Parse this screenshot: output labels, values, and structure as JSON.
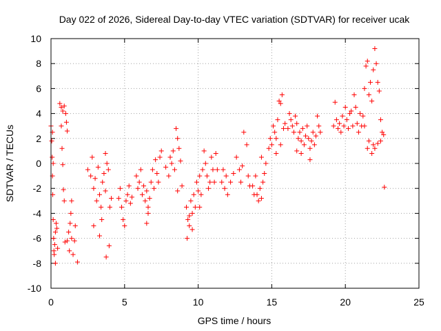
{
  "chart_data": {
    "type": "scatter",
    "title": "Day 022 of 2026, Sidereal Day-to-day VTEC variation (SDTVAR) for receiver ucak",
    "xlabel": "GPS time / hours",
    "ylabel": "SDTVAR / TECUs",
    "xlim": [
      0,
      25
    ],
    "ylim": [
      -10,
      10
    ],
    "x_ticks": [
      0,
      5,
      10,
      15,
      20,
      25
    ],
    "y_ticks": [
      -10,
      -8,
      -6,
      -4,
      -2,
      0,
      2,
      4,
      6,
      8,
      10
    ],
    "x_tick_labels": [
      "0",
      "5",
      "10",
      "15",
      "20",
      "25"
    ],
    "y_tick_labels": [
      "-10",
      "-8",
      "-6",
      "-4",
      "-2",
      "0",
      "2",
      "4",
      "6",
      "8",
      "10"
    ],
    "grid": true,
    "marker": "+",
    "color": "#ff0000",
    "series": [
      {
        "name": "SDTVAR",
        "points": [
          [
            0.0,
            3.0
          ],
          [
            0.05,
            1.8
          ],
          [
            0.08,
            0.5
          ],
          [
            0.1,
            -1.0
          ],
          [
            0.12,
            -2.5
          ],
          [
            0.15,
            -4.5
          ],
          [
            0.18,
            -6.0
          ],
          [
            0.2,
            -7.0
          ],
          [
            0.22,
            -7.3
          ],
          [
            0.25,
            -6.5
          ],
          [
            0.3,
            -5.5
          ],
          [
            0.35,
            -4.8
          ],
          [
            0.4,
            -5.2
          ],
          [
            0.45,
            -6.8
          ],
          [
            0.3,
            -8.0
          ],
          [
            0.1,
            2.5
          ],
          [
            0.15,
            0.0
          ],
          [
            0.6,
            4.8
          ],
          [
            0.7,
            4.5
          ],
          [
            0.8,
            4.2
          ],
          [
            0.9,
            4.6
          ],
          [
            1.0,
            4.0
          ],
          [
            1.05,
            3.3
          ],
          [
            1.1,
            2.6
          ],
          [
            0.7,
            3.0
          ],
          [
            0.75,
            1.2
          ],
          [
            0.8,
            -0.1
          ],
          [
            0.85,
            -2.1
          ],
          [
            0.9,
            -3.0
          ],
          [
            0.95,
            -6.3
          ],
          [
            1.1,
            -6.2
          ],
          [
            1.2,
            -5.5
          ],
          [
            1.3,
            -4.8
          ],
          [
            1.35,
            -4.0
          ],
          [
            1.4,
            -3.0
          ],
          [
            1.25,
            -7.0
          ],
          [
            1.4,
            -6.0
          ],
          [
            1.5,
            -7.3
          ],
          [
            1.6,
            -6.2
          ],
          [
            1.8,
            -7.9
          ],
          [
            1.65,
            -5.0
          ],
          [
            2.5,
            -0.5
          ],
          [
            2.7,
            -1.0
          ],
          [
            2.8,
            0.5
          ],
          [
            2.9,
            -2.0
          ],
          [
            3.0,
            -1.2
          ],
          [
            3.1,
            -3.0
          ],
          [
            3.2,
            -0.3
          ],
          [
            3.3,
            -2.5
          ],
          [
            3.4,
            -3.5
          ],
          [
            3.5,
            -1.5
          ],
          [
            3.6,
            -0.8
          ],
          [
            3.7,
            -2.2
          ],
          [
            3.8,
            0.0
          ],
          [
            3.9,
            -0.5
          ],
          [
            3.7,
            0.8
          ],
          [
            3.75,
            -7.5
          ],
          [
            3.3,
            -5.8
          ],
          [
            3.45,
            -4.5
          ],
          [
            2.9,
            -5.0
          ],
          [
            4.0,
            -3.5
          ],
          [
            4.1,
            -2.8
          ],
          [
            3.95,
            -6.6
          ],
          [
            4.6,
            -2.8
          ],
          [
            4.7,
            -2.0
          ],
          [
            4.8,
            -3.5
          ],
          [
            4.9,
            -4.5
          ],
          [
            5.0,
            -5.0
          ],
          [
            5.1,
            -3.0
          ],
          [
            5.2,
            -2.5
          ],
          [
            5.3,
            -1.8
          ],
          [
            5.4,
            -3.2
          ],
          [
            5.5,
            -2.7
          ],
          [
            5.8,
            -1.0
          ],
          [
            5.9,
            -2.0
          ],
          [
            6.0,
            -1.5
          ],
          [
            6.1,
            -0.5
          ],
          [
            6.2,
            -2.5
          ],
          [
            6.3,
            -1.8
          ],
          [
            6.4,
            -3.0
          ],
          [
            6.5,
            -2.2
          ],
          [
            6.6,
            -4.0
          ],
          [
            6.7,
            -2.8
          ],
          [
            6.8,
            -1.5
          ],
          [
            6.9,
            -0.5
          ],
          [
            7.0,
            -2.0
          ],
          [
            7.1,
            0.3
          ],
          [
            7.2,
            -0.8
          ],
          [
            7.3,
            -1.5
          ],
          [
            7.4,
            0.5
          ],
          [
            7.5,
            1.0
          ],
          [
            6.5,
            -4.8
          ],
          [
            6.6,
            -3.5
          ],
          [
            7.8,
            -0.3
          ],
          [
            8.0,
            -1.0
          ],
          [
            8.1,
            0.5
          ],
          [
            8.3,
            1.0
          ],
          [
            8.4,
            -0.5
          ],
          [
            8.5,
            2.8
          ],
          [
            8.6,
            2.0
          ],
          [
            8.7,
            1.2
          ],
          [
            8.8,
            0.2
          ],
          [
            8.9,
            -1.8
          ],
          [
            8.2,
            0.0
          ],
          [
            8.6,
            -2.2
          ],
          [
            9.2,
            -3.5
          ],
          [
            9.3,
            -4.5
          ],
          [
            9.4,
            -5.0
          ],
          [
            9.5,
            -3.0
          ],
          [
            9.6,
            -4.0
          ],
          [
            9.7,
            -2.5
          ],
          [
            9.8,
            -3.5
          ],
          [
            9.9,
            -1.5
          ],
          [
            10.0,
            -2.2
          ],
          [
            10.1,
            -1.0
          ],
          [
            10.2,
            -2.5
          ],
          [
            10.3,
            -0.5
          ],
          [
            10.4,
            1.0
          ],
          [
            10.5,
            0.0
          ],
          [
            10.6,
            -1.0
          ],
          [
            10.7,
            -2.0
          ],
          [
            10.8,
            -1.5
          ],
          [
            10.9,
            0.5
          ],
          [
            11.0,
            -0.5
          ],
          [
            11.1,
            -1.5
          ],
          [
            11.2,
            0.8
          ],
          [
            11.3,
            -0.5
          ],
          [
            9.25,
            -6.0
          ],
          [
            9.6,
            -5.3
          ],
          [
            9.4,
            -4.2
          ],
          [
            10.1,
            -3.5
          ],
          [
            11.6,
            -1.5
          ],
          [
            11.7,
            -0.5
          ],
          [
            11.8,
            -2.0
          ],
          [
            11.9,
            -1.0
          ],
          [
            12.0,
            -2.5
          ],
          [
            12.2,
            -1.5
          ],
          [
            12.4,
            -0.8
          ],
          [
            12.6,
            0.5
          ],
          [
            12.8,
            -0.5
          ],
          [
            12.9,
            -1.5
          ],
          [
            13.0,
            -0.2
          ],
          [
            13.1,
            2.5
          ],
          [
            13.3,
            1.5
          ],
          [
            13.4,
            -1.0
          ],
          [
            13.5,
            -1.8
          ],
          [
            13.7,
            -1.8
          ],
          [
            13.8,
            -2.5
          ],
          [
            13.9,
            -1.0
          ],
          [
            14.0,
            -2.5
          ],
          [
            14.1,
            -3.0
          ],
          [
            14.2,
            -2.0
          ],
          [
            14.3,
            -2.8
          ],
          [
            14.4,
            -1.5
          ],
          [
            14.5,
            -0.8
          ],
          [
            14.3,
            0.5
          ],
          [
            14.6,
            0.0
          ],
          [
            14.8,
            1.2
          ],
          [
            14.9,
            2.0
          ],
          [
            15.0,
            1.5
          ],
          [
            15.1,
            3.0
          ],
          [
            15.2,
            2.5
          ],
          [
            15.3,
            2.0
          ],
          [
            15.4,
            3.5
          ],
          [
            15.5,
            5.0
          ],
          [
            15.6,
            4.8
          ],
          [
            15.7,
            5.5
          ],
          [
            15.8,
            2.8
          ],
          [
            15.9,
            3.2
          ],
          [
            15.6,
            1.5
          ],
          [
            15.3,
            0.8
          ],
          [
            16.1,
            2.8
          ],
          [
            16.2,
            4.0
          ],
          [
            16.3,
            3.5
          ],
          [
            16.4,
            3.0
          ],
          [
            16.5,
            2.5
          ],
          [
            16.6,
            3.8
          ],
          [
            16.7,
            3.2
          ],
          [
            16.8,
            2.0
          ],
          [
            16.9,
            2.5
          ],
          [
            17.0,
            1.8
          ],
          [
            17.1,
            2.8
          ],
          [
            17.2,
            1.5
          ],
          [
            17.3,
            2.2
          ],
          [
            17.4,
            3.0
          ],
          [
            17.5,
            2.0
          ],
          [
            17.6,
            1.2
          ],
          [
            17.7,
            1.8
          ],
          [
            17.8,
            2.5
          ],
          [
            17.9,
            1.5
          ],
          [
            18.0,
            2.2
          ],
          [
            18.1,
            3.8
          ],
          [
            18.2,
            3.0
          ],
          [
            18.3,
            2.5
          ],
          [
            17.0,
            0.8
          ],
          [
            16.7,
            1.0
          ],
          [
            17.6,
            0.3
          ],
          [
            19.2,
            3.0
          ],
          [
            19.3,
            4.9
          ],
          [
            19.4,
            3.5
          ],
          [
            19.5,
            2.8
          ],
          [
            19.6,
            3.2
          ],
          [
            19.7,
            2.5
          ],
          [
            19.8,
            3.8
          ],
          [
            19.9,
            3.0
          ],
          [
            20.0,
            4.5
          ],
          [
            20.1,
            3.5
          ],
          [
            20.2,
            2.8
          ],
          [
            20.3,
            4.0
          ],
          [
            20.4,
            4.2
          ],
          [
            20.5,
            3.0
          ],
          [
            20.6,
            5.5
          ],
          [
            20.7,
            4.5
          ],
          [
            20.8,
            3.2
          ],
          [
            20.9,
            2.5
          ],
          [
            21.0,
            4.0
          ],
          [
            21.1,
            3.0
          ],
          [
            21.2,
            3.8
          ],
          [
            21.3,
            6.0
          ],
          [
            21.4,
            7.8
          ],
          [
            21.5,
            8.2
          ],
          [
            21.6,
            5.5
          ],
          [
            21.7,
            6.5
          ],
          [
            21.8,
            5.0
          ],
          [
            21.9,
            7.5
          ],
          [
            22.0,
            9.2
          ],
          [
            22.1,
            8.0
          ],
          [
            22.2,
            6.5
          ],
          [
            22.3,
            5.8
          ],
          [
            22.4,
            3.5
          ],
          [
            22.5,
            2.5
          ],
          [
            21.5,
            1.2
          ],
          [
            21.6,
            1.8
          ],
          [
            21.8,
            0.8
          ],
          [
            21.9,
            1.5
          ],
          [
            22.0,
            1.2
          ],
          [
            22.2,
            1.6
          ],
          [
            22.4,
            1.8
          ],
          [
            22.6,
            2.3
          ],
          [
            22.65,
            -1.9
          ],
          [
            21.3,
            3.0
          ]
        ]
      }
    ]
  }
}
